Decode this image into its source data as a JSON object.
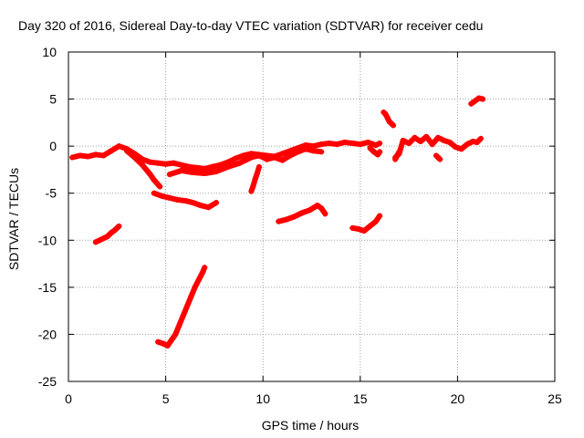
{
  "chart_data": {
    "type": "scatter",
    "title": "Day 320 of 2016, Sidereal Day-to-day VTEC variation (SDTVAR) for receiver cedu",
    "xlabel": "GPS time / hours",
    "ylabel": "SDTVAR / TECUs",
    "xlim": [
      0,
      25
    ],
    "ylim": [
      -25,
      10
    ],
    "xticks": [
      0,
      5,
      10,
      15,
      20,
      25
    ],
    "xtick_labels": [
      "0",
      "5",
      "10",
      "15",
      "20",
      "25"
    ],
    "yticks": [
      10,
      5,
      0,
      -5,
      -10,
      -15,
      -20,
      -25
    ],
    "ytick_labels": [
      "10",
      "5",
      "0",
      "-5",
      "-10",
      "-15",
      "-20",
      "-25"
    ],
    "grid": true,
    "marker_color": "#ff0000",
    "series": [
      {
        "name": "main-band",
        "x": [
          0.2,
          0.6,
          1.0,
          1.4,
          1.8,
          2.2,
          2.6,
          3.0,
          3.4,
          3.8,
          4.2,
          4.6,
          5.0,
          5.4,
          5.8,
          6.2,
          6.6,
          7.0,
          7.4,
          7.8,
          8.2,
          8.6,
          9.0,
          9.4,
          9.8,
          10.2,
          10.6,
          11.0,
          11.4,
          11.8,
          12.2,
          12.6,
          13.0,
          13.4,
          13.8,
          14.2,
          14.6,
          15.0,
          15.4,
          15.8,
          16.0
        ],
        "y": [
          -1.2,
          -1.0,
          -1.1,
          -0.9,
          -1.0,
          -0.5,
          0.0,
          -0.3,
          -0.8,
          -1.4,
          -1.7,
          -1.8,
          -1.9,
          -1.8,
          -2.0,
          -2.2,
          -2.3,
          -2.4,
          -2.2,
          -2.0,
          -1.7,
          -1.3,
          -1.0,
          -0.8,
          -0.9,
          -1.0,
          -1.1,
          -0.8,
          -0.5,
          -0.2,
          0.1,
          0.0,
          0.2,
          0.3,
          0.2,
          0.4,
          0.3,
          0.2,
          0.4,
          0.1,
          0.3
        ]
      },
      {
        "name": "band-lower",
        "x": [
          3.0,
          3.4,
          3.8,
          4.2,
          4.4,
          4.7
        ],
        "y": [
          -0.5,
          -1.2,
          -2.0,
          -3.0,
          -3.6,
          -4.3
        ]
      },
      {
        "name": "band-branch",
        "x": [
          5.2,
          5.8,
          6.4,
          7.0,
          7.6,
          8.2,
          8.8,
          9.4,
          9.8,
          10.2,
          10.6,
          11.0,
          11.4,
          11.8,
          12.2,
          12.6,
          13.0
        ],
        "y": [
          -3.0,
          -2.6,
          -2.8,
          -2.9,
          -2.7,
          -2.2,
          -1.8,
          -1.2,
          -1.0,
          -1.4,
          -1.2,
          -1.5,
          -1.0,
          -0.6,
          -0.3,
          -0.5,
          -0.6
        ]
      },
      {
        "name": "dip-9.5",
        "x": [
          9.4,
          9.5,
          9.6,
          9.7,
          9.8
        ],
        "y": [
          -4.8,
          -4.2,
          -3.5,
          -2.9,
          -2.2
        ]
      },
      {
        "name": "drop-16",
        "x": [
          15.5,
          15.7,
          15.9,
          16.0
        ],
        "y": [
          -0.2,
          -0.6,
          -0.9,
          -0.6
        ]
      },
      {
        "name": "cluster-16.3",
        "x": [
          16.2,
          16.3,
          16.4,
          16.5,
          16.6,
          16.7
        ],
        "y": [
          3.6,
          3.4,
          3.0,
          2.6,
          2.4,
          2.2
        ]
      },
      {
        "name": "cluster-17-21",
        "x": [
          16.8,
          17.0,
          17.2,
          17.5,
          17.8,
          18.1,
          18.4,
          18.7,
          19.0,
          19.3,
          19.6,
          19.9,
          20.2,
          20.5,
          20.8,
          21.0,
          21.2
        ],
        "y": [
          -1.2,
          -0.8,
          0.6,
          0.3,
          0.9,
          0.5,
          1.0,
          0.2,
          0.9,
          0.6,
          0.4,
          -0.1,
          -0.3,
          0.2,
          0.5,
          0.4,
          0.8
        ]
      },
      {
        "name": "drop-17",
        "x": [
          16.8,
          16.9,
          17.0
        ],
        "y": [
          -1.4,
          -1.0,
          -0.6
        ]
      },
      {
        "name": "cluster-19",
        "x": [
          18.9,
          19.0,
          19.1
        ],
        "y": [
          -1.0,
          -1.2,
          -1.4
        ]
      },
      {
        "name": "high-21",
        "x": [
          20.7,
          20.9,
          21.1,
          21.3
        ],
        "y": [
          4.5,
          4.8,
          5.1,
          5.0
        ]
      },
      {
        "name": "low-5-8",
        "x": [
          4.4,
          4.8,
          5.2,
          5.6,
          6.0,
          6.4,
          6.8,
          7.2,
          7.6
        ],
        "y": [
          -5.0,
          -5.3,
          -5.5,
          -5.7,
          -5.8,
          -6.0,
          -6.3,
          -6.5,
          -6.0
        ]
      },
      {
        "name": "low-1.5",
        "x": [
          1.4,
          1.6,
          1.8,
          2.0,
          2.2,
          2.4,
          2.6
        ],
        "y": [
          -10.2,
          -10.0,
          -9.8,
          -9.6,
          -9.2,
          -8.9,
          -8.5
        ]
      },
      {
        "name": "low-11-13",
        "x": [
          10.8,
          11.2,
          11.6,
          12.0,
          12.4,
          12.8,
          13.0,
          13.2
        ],
        "y": [
          -8.0,
          -7.8,
          -7.5,
          -7.1,
          -6.8,
          -6.3,
          -6.6,
          -7.2
        ]
      },
      {
        "name": "low-15",
        "x": [
          14.6,
          14.9,
          15.2,
          15.5,
          15.8,
          16.0
        ],
        "y": [
          -8.7,
          -8.8,
          -9.0,
          -8.5,
          -8.0,
          -7.4
        ]
      },
      {
        "name": "deep-5-7",
        "x": [
          4.6,
          4.9,
          5.1,
          5.3,
          5.5,
          5.7,
          5.9,
          6.1,
          6.3,
          6.5,
          6.7,
          6.9,
          7.0
        ],
        "y": [
          -20.8,
          -21.0,
          -21.2,
          -20.6,
          -20.0,
          -19.0,
          -18.0,
          -17.0,
          -16.0,
          -15.0,
          -14.2,
          -13.4,
          -12.9
        ]
      }
    ]
  }
}
